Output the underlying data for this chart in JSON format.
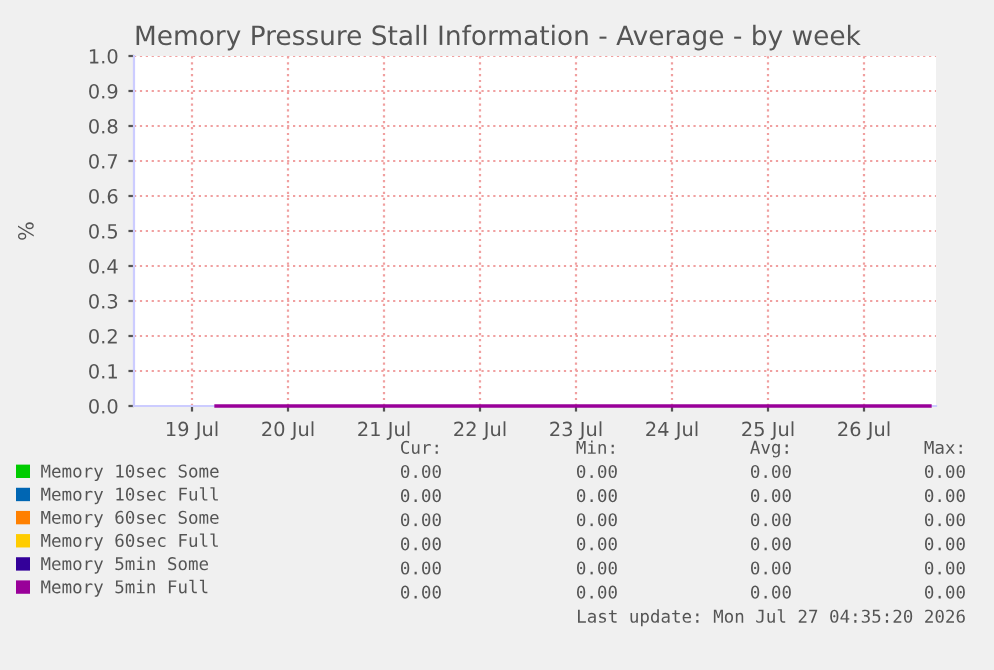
{
  "chart_data": {
    "type": "line",
    "title": "Memory Pressure Stall Information - Average - by week",
    "ylabel": "%",
    "x": [
      "2026-07-19T18:00",
      "2026-07-27T04:30"
    ],
    "series": [
      {
        "name": "Memory 10sec Some",
        "color": "#00cc00",
        "values": [
          null,
          null
        ]
      },
      {
        "name": "Memory 10sec Full",
        "color": "#0066b3",
        "values": [
          null,
          null
        ]
      },
      {
        "name": "Memory 60sec Some",
        "color": "#ff8000",
        "values": [
          null,
          null
        ]
      },
      {
        "name": "Memory 60sec Full",
        "color": "#ffcc00",
        "values": [
          null,
          null
        ]
      },
      {
        "name": "Memory 5min Some",
        "color": "#330099",
        "values": [
          null,
          null
        ]
      },
      {
        "name": "Memory 5min Full",
        "color": "#990099",
        "values": [
          0,
          0
        ]
      }
    ],
    "xlim": [
      "2026-07-18T21:30",
      "2026-07-27T06:00"
    ],
    "xticks": [
      {
        "value": "2026-07-19T12:00",
        "label": "19 Jul"
      },
      {
        "value": "2026-07-20T12:00",
        "label": "20 Jul"
      },
      {
        "value": "2026-07-21T12:00",
        "label": "21 Jul"
      },
      {
        "value": "2026-07-22T12:00",
        "label": "22 Jul"
      },
      {
        "value": "2026-07-23T12:00",
        "label": "23 Jul"
      },
      {
        "value": "2026-07-24T12:00",
        "label": "24 Jul"
      },
      {
        "value": "2026-07-25T12:00",
        "label": "25 Jul"
      },
      {
        "value": "2026-07-26T12:00",
        "label": "26 Jul"
      }
    ],
    "ylim": [
      0,
      1
    ],
    "yticks": [
      {
        "value": 0,
        "label": "0.0"
      },
      {
        "value": 0.1,
        "label": "0.1"
      },
      {
        "value": 0.2,
        "label": "0.2"
      },
      {
        "value": 0.3,
        "label": "0.3"
      },
      {
        "value": 0.4,
        "label": "0.4"
      },
      {
        "value": 0.5,
        "label": "0.5"
      },
      {
        "value": 0.6,
        "label": "0.6"
      },
      {
        "value": 0.7,
        "label": "0.7"
      },
      {
        "value": 0.8,
        "label": "0.8"
      },
      {
        "value": 0.9,
        "label": "0.9"
      },
      {
        "value": 1,
        "label": "1.0"
      }
    ],
    "grid": true,
    "legend": "bottom",
    "marker": "none",
    "line_style": "solid",
    "annotations": [
      "Cur:",
      "Min:",
      "Avg:",
      "Max:",
      "0.00",
      "0.00",
      "0.00",
      "0.00",
      "0.00",
      "0.00",
      "0.00",
      "0.00",
      "0.00",
      "0.00",
      "0.00",
      "0.00",
      "0.00",
      "0.00",
      "0.00",
      "0.00",
      "0.00",
      "0.00",
      "0.00",
      "0.00",
      "0.00",
      "0.00",
      "0.00",
      "0.00",
      "Last update: Mon Jul 27 04:35:20 2026"
    ]
  }
}
